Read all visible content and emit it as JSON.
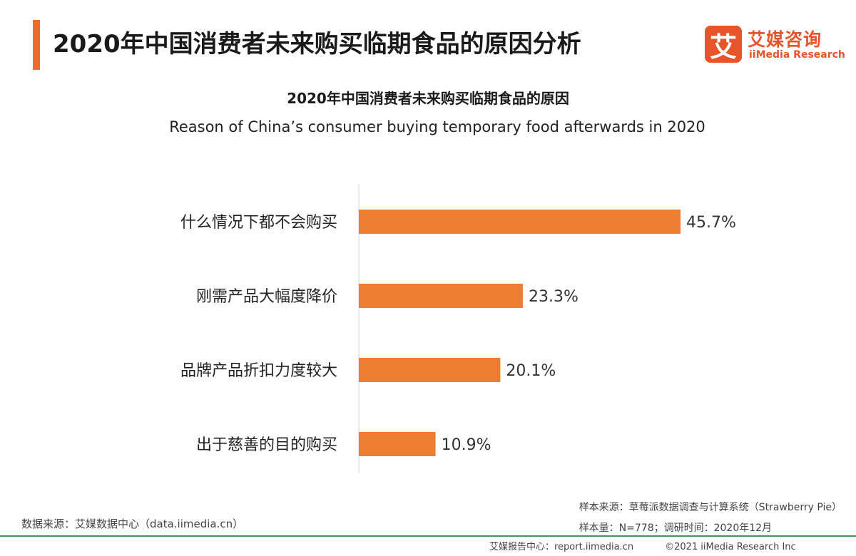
{
  "header": {
    "title": "2020年中国消费者未来购买临期食品的原因分析",
    "logo_mark": "艾",
    "logo_cn": "艾媒咨询",
    "logo_en": "iiMedia Research"
  },
  "chart_data": {
    "type": "bar",
    "orientation": "horizontal",
    "title": "2020年中国消费者未来购买临期食品的原因",
    "subtitle": "Reason of China’s consumer buying temporary food afterwards in 2020",
    "categories": [
      "什么情况下都不会购买",
      "刚需产品大幅度降价",
      "品牌产品折扣力度较大",
      "出于慈善的目的购买"
    ],
    "values": [
      45.7,
      23.3,
      20.1,
      10.9
    ],
    "value_labels": [
      "45.7%",
      "23.3%",
      "20.1%",
      "10.9%"
    ],
    "xlim": [
      0,
      50
    ],
    "bar_color": "#ed7d31",
    "grid": false,
    "legend": "none"
  },
  "footer": {
    "source": "数据来源：艾媒数据中心（data.iimedia.cn）",
    "sample_source": "样本来源：草莓派数据调查与计算系统（Strawberry Pie）",
    "sample_size": "样本量：N=778；调研时间：2020年12月",
    "report_center": "艾媒报告中心：report.iimedia.cn",
    "copyright": "©2021  iiMedia Research  Inc"
  },
  "colors": {
    "accent": "#ec6b2d",
    "brand": "#e8542a",
    "footer_line": "#3e9a54"
  }
}
